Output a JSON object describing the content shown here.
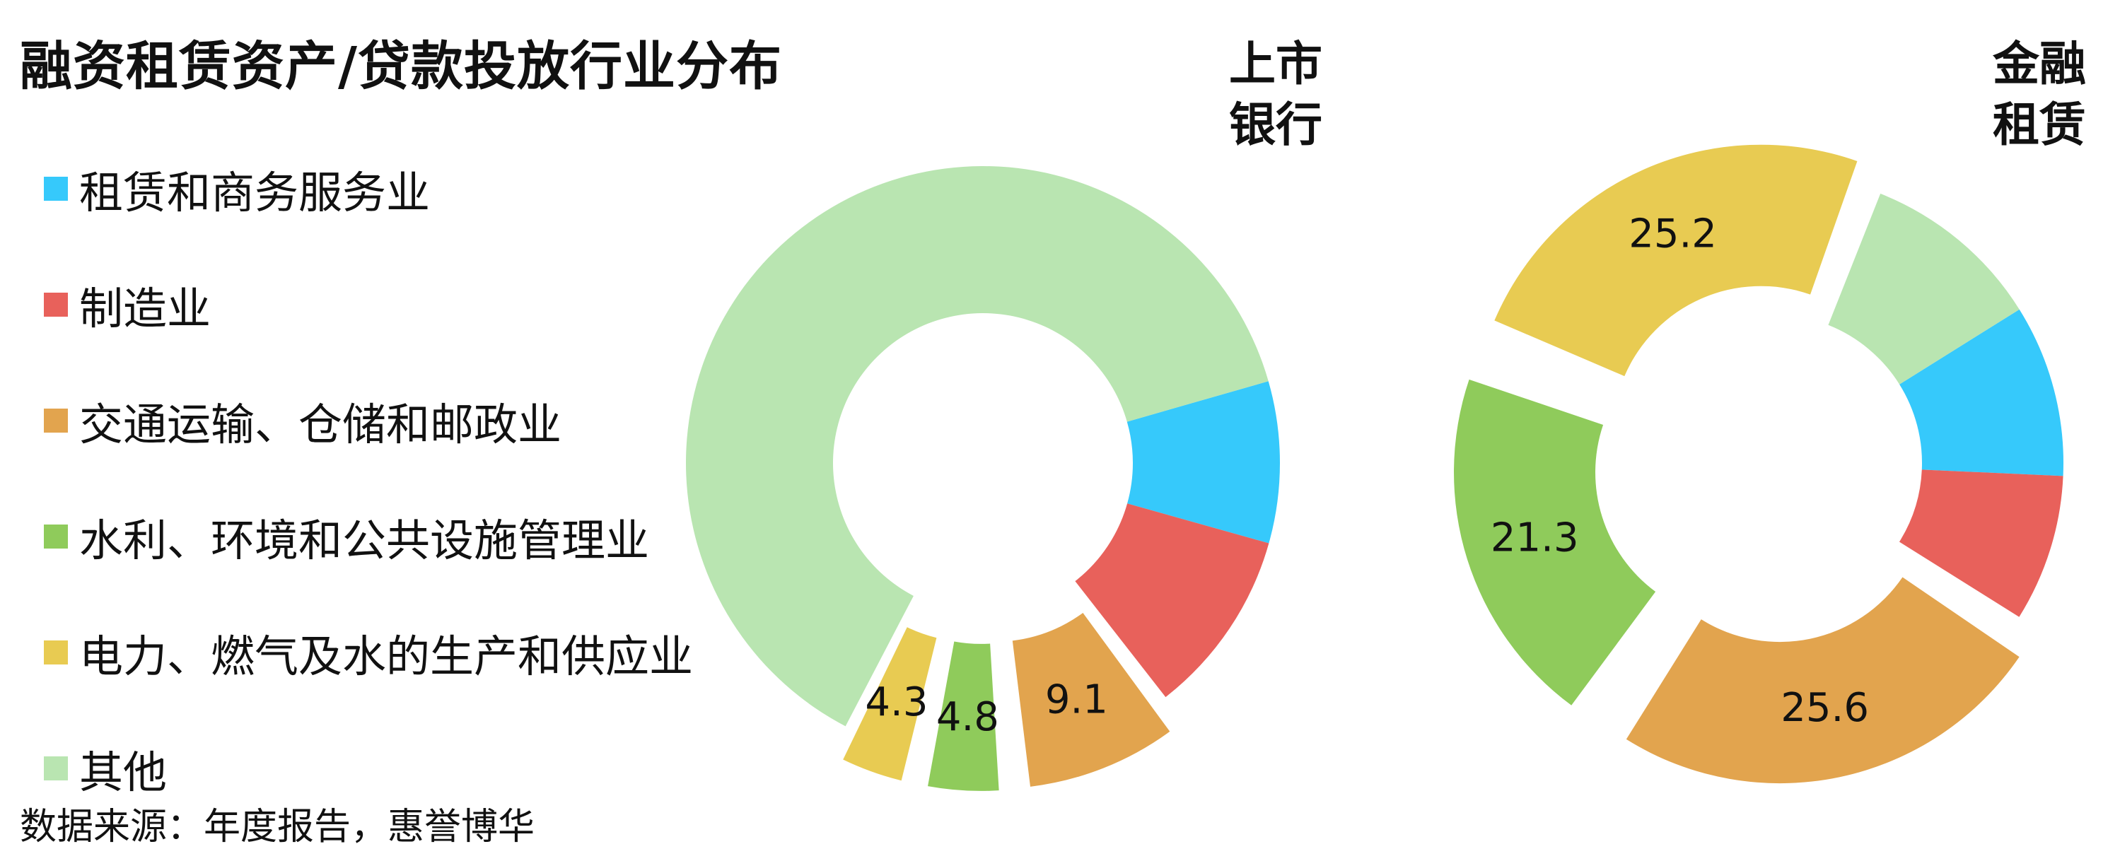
{
  "title": "融资租赁资产/贷款投放行业分布",
  "source": "数据来源：年度报告，惠誉博华",
  "legend": [
    {
      "label": "租赁和商务服务业",
      "color": "#36c9fb"
    },
    {
      "label": "制造业",
      "color": "#e8615b"
    },
    {
      "label": "交通运输、仓储和邮政业",
      "color": "#e2a44e"
    },
    {
      "label": "水利、环境和公共设施管理业",
      "color": "#8fcb5b"
    },
    {
      "label": "电力、燃气及水的生产和供应业",
      "color": "#e8cb52"
    },
    {
      "label": "其他",
      "color": "#b9e5b1"
    }
  ],
  "chart_data": [
    {
      "type": "pie",
      "title_line1": "上市",
      "title_line2": "银行",
      "categories": [
        "租赁和商务服务业",
        "制造业",
        "交通运输、仓储和邮政业",
        "水利、环境和公共设施管理业",
        "电力、燃气及水的生产和供应业",
        "其他"
      ],
      "values": [
        8.8,
        10.1,
        9.1,
        4.8,
        4.3,
        62.9
      ],
      "labels": [
        "",
        "",
        "9.1",
        "4.8",
        "4.3",
        ""
      ],
      "exploded": [
        false,
        false,
        true,
        true,
        true,
        false
      ]
    },
    {
      "type": "pie",
      "title_line1": "金融",
      "title_line2": "租赁",
      "categories": [
        "租赁和商务服务业",
        "制造业",
        "交通运输、仓储和邮政业",
        "水利、环境和公共设施管理业",
        "电力、燃气及水的生产和供应业",
        "其他"
      ],
      "values": [
        9.6,
        8.2,
        25.6,
        21.3,
        25.2,
        10.1
      ],
      "labels": [
        "",
        "",
        "25.6",
        "21.3",
        "25.2",
        ""
      ],
      "exploded": [
        false,
        false,
        true,
        true,
        true,
        false
      ]
    }
  ]
}
